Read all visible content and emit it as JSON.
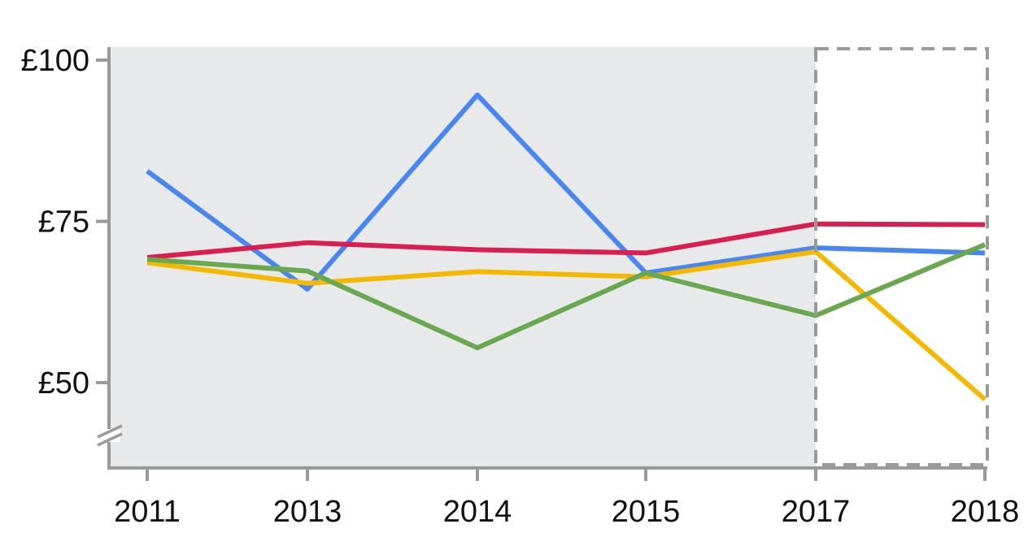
{
  "chart_data": {
    "type": "line",
    "title": "",
    "xlabel": "",
    "ylabel": "",
    "categories": [
      "2011",
      "2013",
      "2014",
      "2015",
      "2017",
      "2018"
    ],
    "y_ticks": [
      {
        "value": 100,
        "label": "£100"
      },
      {
        "value": 75,
        "label": "£75"
      },
      {
        "value": 50,
        "label": "£50"
      }
    ],
    "ylim": [
      41,
      102
    ],
    "axis_break": true,
    "grid": false,
    "legend": "none",
    "shaded_range": [
      "2011",
      "2017"
    ],
    "highlight_range": [
      "2017",
      "2018"
    ],
    "colors": {
      "shade": "#e8e9eb",
      "axis": "#9a9a9a"
    },
    "series": [
      {
        "color": "#4a86f0",
        "values": [
          82.8,
          64.5,
          94.6,
          67.0,
          70.9,
          70.1
        ]
      },
      {
        "color": "#d81f4f",
        "values": [
          69.4,
          71.7,
          70.6,
          70.1,
          74.6,
          74.5
        ]
      },
      {
        "color": "#f5b800",
        "values": [
          68.6,
          65.4,
          67.2,
          66.4,
          70.3,
          47.4
        ]
      },
      {
        "color": "#6aa84f",
        "values": [
          69.1,
          67.3,
          55.4,
          67.0,
          60.4,
          71.4
        ]
      }
    ]
  }
}
